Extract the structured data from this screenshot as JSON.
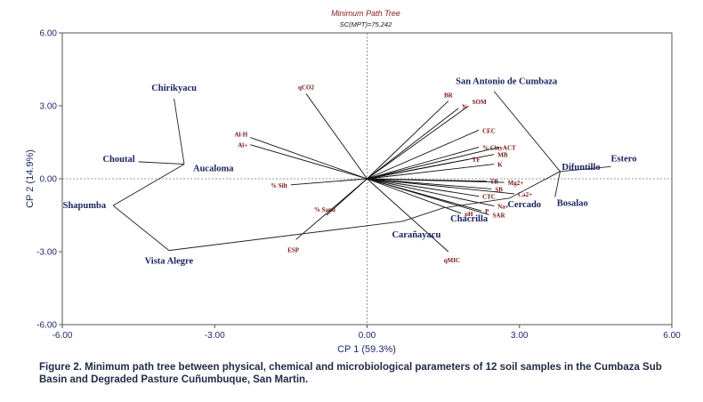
{
  "chart_data": {
    "type": "scatter",
    "title": "Minimum Path Tree",
    "subtitle": "SC(MPT)=75.242",
    "xlabel": "CP 1 (59.3%)",
    "ylabel": "CP 2 (14.9%)",
    "xlim": [
      -6,
      6
    ],
    "ylim": [
      -6,
      6
    ],
    "xticks": [
      "-6.00",
      "-3.00",
      "0.00",
      "3.00",
      "6.00"
    ],
    "yticks": [
      "6.00",
      "3.00",
      "0.00",
      "-3.00",
      "-6.00"
    ],
    "samples": [
      {
        "name": "Chirikyacu",
        "x": -3.8,
        "y": 3.3
      },
      {
        "name": "Choutal",
        "x": -4.5,
        "y": 0.7
      },
      {
        "name": "Aucaloma",
        "x": -3.6,
        "y": 0.6
      },
      {
        "name": "Shapumba",
        "x": -5.0,
        "y": -1.1
      },
      {
        "name": "Vista Alegre",
        "x": -3.9,
        "y": -2.95
      },
      {
        "name": "Carañayacu",
        "x": 0.7,
        "y": -1.75
      },
      {
        "name": "Chacrilla",
        "x": 1.5,
        "y": -1.2
      },
      {
        "name": "Cercado",
        "x": 2.8,
        "y": -0.8
      },
      {
        "name": "San Antonio de Cumbaza",
        "x": 2.5,
        "y": 3.6
      },
      {
        "name": "Difuntillo",
        "x": 3.8,
        "y": 0.3
      },
      {
        "name": "Bosalao",
        "x": 3.7,
        "y": -0.75
      },
      {
        "name": "Estero",
        "x": 4.8,
        "y": 0.5
      }
    ],
    "tree_edges": [
      [
        "Chirikyacu",
        "Aucaloma"
      ],
      [
        "Choutal",
        "Aucaloma"
      ],
      [
        "Aucaloma",
        "Shapumba"
      ],
      [
        "Shapumba",
        "Vista Alegre"
      ],
      [
        "Vista Alegre",
        "Carañayacu"
      ],
      [
        "Carañayacu",
        "Chacrilla"
      ],
      [
        "Chacrilla",
        "Cercado"
      ],
      [
        "Cercado",
        "Difuntillo"
      ],
      [
        "San Antonio de Cumbaza",
        "Difuntillo"
      ],
      [
        "Difuntillo",
        "Bosalao"
      ],
      [
        "Difuntillo",
        "Estero"
      ]
    ],
    "variables": [
      {
        "name": "qCO2",
        "x": -1.2,
        "y": 3.5
      },
      {
        "name": "BR",
        "x": 1.6,
        "y": 3.2
      },
      {
        "name": "SOM",
        "x": 2.0,
        "y": 3.0
      },
      {
        "name": "N",
        "x": 1.8,
        "y": 2.9
      },
      {
        "name": "CEC",
        "x": 2.2,
        "y": 2.0
      },
      {
        "name": "% Clay",
        "x": 2.2,
        "y": 1.3
      },
      {
        "name": "ACT",
        "x": 2.6,
        "y": 1.3
      },
      {
        "name": "MB",
        "x": 2.5,
        "y": 1.0
      },
      {
        "name": "TF",
        "x": 2.0,
        "y": 0.8
      },
      {
        "name": "K",
        "x": 2.5,
        "y": 0.6
      },
      {
        "name": "TB",
        "x": 2.35,
        "y": -0.1
      },
      {
        "name": "Mg2+",
        "x": 2.7,
        "y": -0.15
      },
      {
        "name": "SB",
        "x": 2.45,
        "y": -0.42
      },
      {
        "name": "Ca2+",
        "x": 2.9,
        "y": -0.62
      },
      {
        "name": "CTC",
        "x": 2.2,
        "y": -0.72
      },
      {
        "name": "Na+",
        "x": 2.5,
        "y": -1.12
      },
      {
        "name": "P",
        "x": 2.25,
        "y": -1.32
      },
      {
        "name": "pH",
        "x": 1.85,
        "y": -1.42
      },
      {
        "name": "SAR",
        "x": 2.4,
        "y": -1.48
      },
      {
        "name": "qMIC",
        "x": 1.6,
        "y": -3.0
      },
      {
        "name": "Al-H",
        "x": -2.3,
        "y": 1.7
      },
      {
        "name": "Al+",
        "x": -2.3,
        "y": 1.4
      },
      {
        "name": "% Silt",
        "x": -1.5,
        "y": -0.25
      },
      {
        "name": "% Sand",
        "x": -0.8,
        "y": -1.5
      },
      {
        "name": "ESP",
        "x": -1.4,
        "y": -2.5
      }
    ]
  },
  "caption": "Figure 2. Minimum path tree between physical, chemical and microbiological parameters of 12 soil samples in the Cumbaza Sub Basin and Degraded Pasture Cuñumbuque, San Martin."
}
